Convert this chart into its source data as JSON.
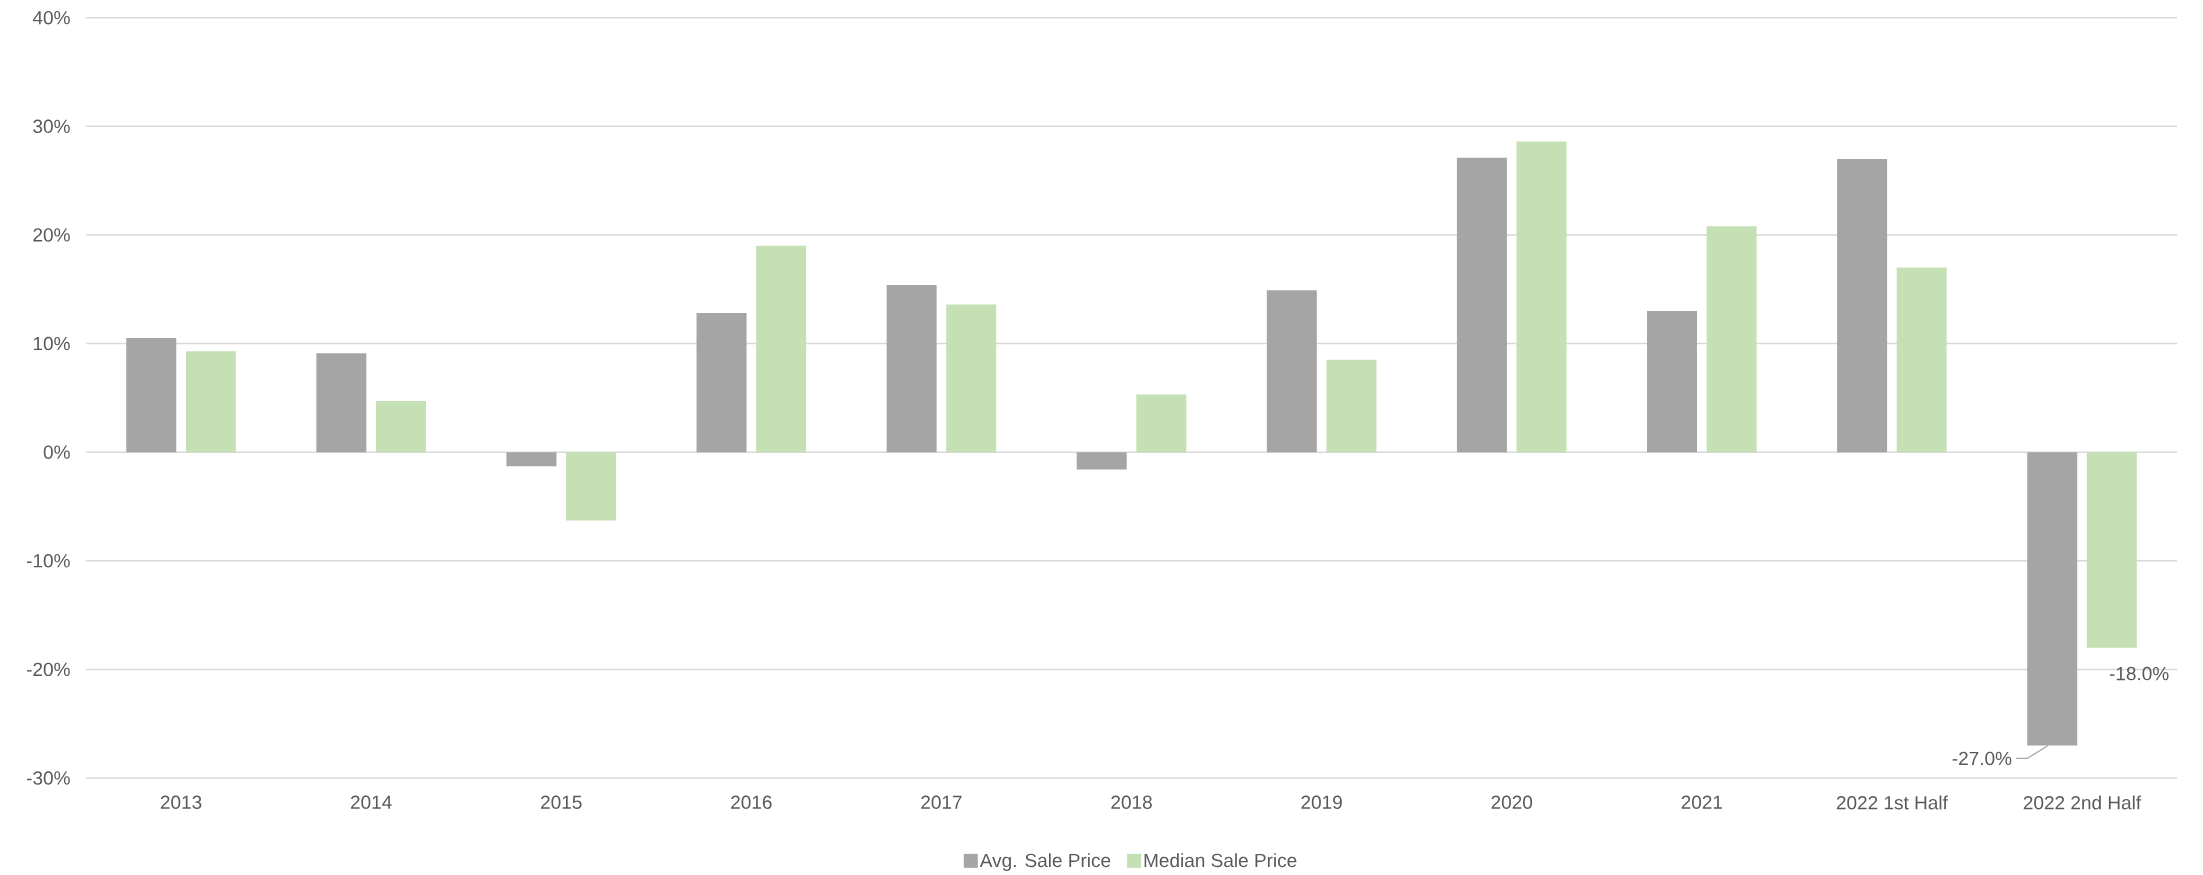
{
  "chart_data": {
    "type": "bar",
    "categories": [
      "2013",
      "2014",
      "2015",
      "2016",
      "2017",
      "2018",
      "2019",
      "2020",
      "2021",
      "2022 1st Half",
      "2022 2nd Half"
    ],
    "series": [
      {
        "name": "Avg. Sale Price",
        "color": "#a5a5a5",
        "values": [
          10.5,
          9.1,
          -1.3,
          12.8,
          15.4,
          -1.6,
          14.9,
          27.1,
          13.0,
          27.0,
          -27.0
        ],
        "value_labels": [
          null,
          null,
          null,
          null,
          null,
          null,
          null,
          null,
          null,
          null,
          "-27.0%"
        ]
      },
      {
        "name": "Median Sale Price",
        "color": "#c5e0b4",
        "values": [
          9.3,
          4.7,
          -6.3,
          19.0,
          13.6,
          5.3,
          8.5,
          28.6,
          20.8,
          17.0,
          -18.0
        ],
        "value_labels": [
          null,
          null,
          null,
          null,
          null,
          null,
          null,
          null,
          null,
          null,
          "-18.0%"
        ]
      }
    ],
    "ylim": [
      -30,
      40
    ],
    "yticks": [
      {
        "value": -30,
        "label": "-30%"
      },
      {
        "value": -20,
        "label": "-20%"
      },
      {
        "value": -10,
        "label": "-10%"
      },
      {
        "value": 0,
        "label": "0%"
      },
      {
        "value": 10,
        "label": "10%"
      },
      {
        "value": 20,
        "label": "20%"
      },
      {
        "value": 30,
        "label": "30%"
      },
      {
        "value": 40,
        "label": "40%"
      }
    ],
    "grid": "y",
    "legend": "bottom"
  }
}
